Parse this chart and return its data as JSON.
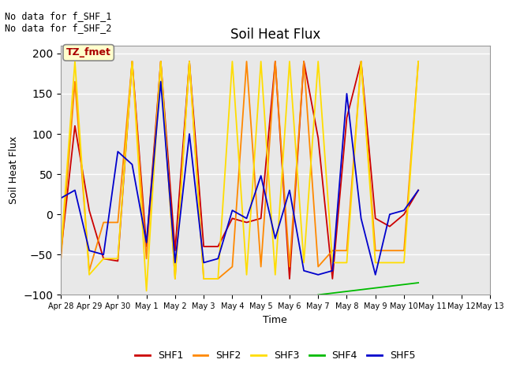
{
  "title": "Soil Heat Flux",
  "xlabel": "Time",
  "ylabel": "Soil Heat Flux",
  "ylim": [
    -100,
    210
  ],
  "annotation_text": "No data for f_SHF_1\nNo data for f_SHF_2",
  "box_label": "TZ_fmet",
  "x_tick_positions": [
    0,
    1,
    2,
    3,
    4,
    5,
    6,
    7,
    8,
    9,
    10,
    11,
    12,
    13,
    14,
    15
  ],
  "x_tick_labels": [
    "Apr 28",
    "Apr 29",
    "Apr 30",
    "May 1",
    "May 2",
    "May 3",
    "May 4",
    "May 5",
    "May 6",
    "May 7",
    "May 8",
    "May 9",
    "May 10",
    "May 11",
    "May 12",
    "May 13"
  ],
  "SHF1": {
    "x": [
      0,
      0.5,
      1,
      1.5,
      2,
      2.5,
      3,
      3.5,
      4,
      4.5,
      5,
      5.5,
      6,
      6.5,
      7,
      7.5,
      8,
      8.5,
      9,
      9.5,
      10,
      10.5,
      11,
      11.5,
      12,
      12.5
    ],
    "y": [
      -50,
      110,
      5,
      -55,
      -58,
      190,
      -40,
      190,
      -45,
      190,
      -40,
      -40,
      -5,
      -10,
      -5,
      190,
      -80,
      190,
      95,
      -80,
      120,
      190,
      -5,
      -15,
      0,
      30
    ],
    "color": "#cc0000",
    "label": "SHF1"
  },
  "SHF2": {
    "x": [
      0,
      0.5,
      1,
      1.5,
      2,
      2.5,
      3,
      3.5,
      4,
      4.5,
      5,
      5.5,
      6,
      6.5,
      7,
      7.5,
      8,
      8.5,
      9,
      9.5,
      10,
      10.5,
      11,
      11.5,
      12,
      12.5
    ],
    "y": [
      -60,
      165,
      -70,
      -10,
      -10,
      190,
      -55,
      190,
      -80,
      190,
      -80,
      -80,
      -65,
      190,
      -65,
      190,
      -65,
      190,
      -65,
      -45,
      -45,
      190,
      -45,
      -45,
      -45,
      190
    ],
    "color": "#ff8800",
    "label": "SHF2"
  },
  "SHF3": {
    "x": [
      0,
      0.5,
      1,
      1.5,
      2,
      2.5,
      3,
      3.5,
      4,
      4.5,
      5,
      5.5,
      6,
      6.5,
      7,
      7.5,
      8,
      8.5,
      9,
      9.5,
      10,
      10.5,
      11,
      11.5,
      12,
      12.5
    ],
    "y": [
      -50,
      190,
      -75,
      -55,
      -55,
      190,
      -95,
      190,
      -80,
      190,
      -80,
      -80,
      190,
      -75,
      190,
      -75,
      190,
      -60,
      190,
      -60,
      -60,
      190,
      -60,
      -60,
      -60,
      190
    ],
    "color": "#ffdd00",
    "label": "SHF3"
  },
  "SHF4": {
    "x": [
      9,
      12.5
    ],
    "y": [
      -100,
      -85
    ],
    "color": "#00bb00",
    "label": "SHF4"
  },
  "SHF5": {
    "x": [
      0,
      0.5,
      1,
      1.5,
      2,
      2.5,
      3,
      3.5,
      4,
      4.5,
      5,
      5.5,
      6,
      6.5,
      7,
      7.5,
      8,
      8.5,
      9,
      9.5,
      10,
      10.5,
      11,
      11.5,
      12,
      12.5
    ],
    "y": [
      20,
      30,
      -45,
      -50,
      78,
      62,
      -35,
      165,
      -60,
      100,
      -60,
      -55,
      5,
      -5,
      48,
      -30,
      30,
      -70,
      -75,
      -70,
      150,
      -5,
      -75,
      0,
      5,
      30
    ],
    "color": "#0000cc",
    "label": "SHF5"
  },
  "fig_bg_color": "#ffffff",
  "plot_bg_color": "#e8e8e8",
  "legend_items": [
    "SHF1",
    "SHF2",
    "SHF3",
    "SHF4",
    "SHF5"
  ],
  "legend_colors": [
    "#cc0000",
    "#ff8800",
    "#ffdd00",
    "#00bb00",
    "#0000cc"
  ]
}
